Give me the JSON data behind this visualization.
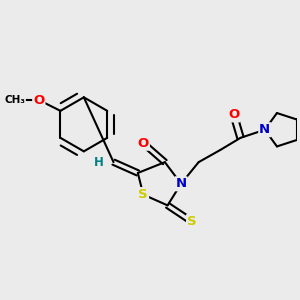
{
  "bg_color": "#ebebeb",
  "bond_color": "#000000",
  "bond_width": 1.5,
  "atom_colors": {
    "O": "#ff0000",
    "N": "#0000cc",
    "S": "#cccc00",
    "H": "#008080",
    "C": "#000000"
  },
  "font_size": 9.5,
  "figsize": [
    3.0,
    3.0
  ],
  "dpi": 100
}
